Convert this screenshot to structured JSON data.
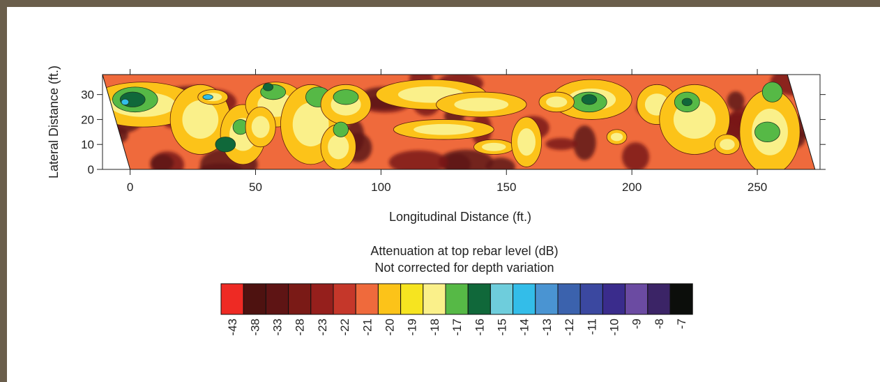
{
  "chart_data": {
    "type": "heatmap",
    "xlabel": "Longitudinal Distance (ft.)",
    "ylabel": "Lateral Distance (ft.)",
    "xlim": [
      -11,
      275
    ],
    "ylim": [
      0,
      38
    ],
    "x_ticks": [
      0,
      50,
      100,
      150,
      200,
      250
    ],
    "y_ticks": [
      0,
      10,
      20,
      30
    ],
    "deck_outline": [
      [
        -11,
        38
      ],
      [
        0,
        0
      ],
      [
        273,
        0
      ],
      [
        262,
        38
      ]
    ],
    "colorbar": {
      "title_line1": "Attenuation at top rebar level (dB)",
      "title_line2": "Not corrected for depth variation",
      "labels": [
        "-43",
        "-38",
        "-33",
        "-28",
        "-23",
        "-22",
        "-21",
        "-20",
        "-19",
        "-18",
        "-17",
        "-16",
        "-15",
        "-14",
        "-13",
        "-12",
        "-11",
        "-10",
        "-9",
        "-8",
        "-7"
      ],
      "colors": [
        "#ee2a24",
        "#4e1210",
        "#5e1414",
        "#7a1a16",
        "#951f1c",
        "#c5372a",
        "#ef6a3c",
        "#fcc319",
        "#f6e420",
        "#faf08a",
        "#56b946",
        "#10683a",
        "#6ecddc",
        "#33bde9",
        "#4a94d2",
        "#3b62ad",
        "#3b48a0",
        "#3a2c8c",
        "#6b4ba2",
        "#3b2466",
        "#0c0e0b"
      ]
    },
    "regions": [
      {
        "level": "-20",
        "cx": 5,
        "cy": 26,
        "rx": 22,
        "ry": 9
      },
      {
        "level": "-17",
        "cx": 2,
        "cy": 28,
        "rx": 9,
        "ry": 5
      },
      {
        "level": "-16",
        "cx": 1,
        "cy": 28,
        "rx": 5,
        "ry": 3
      },
      {
        "level": "-14",
        "cx": -2,
        "cy": 27,
        "rx": 1.5,
        "ry": 1.2
      },
      {
        "level": "-20",
        "cx": 28,
        "cy": 20,
        "rx": 12,
        "ry": 14
      },
      {
        "level": "-20",
        "cx": 45,
        "cy": 14,
        "rx": 9,
        "ry": 12
      },
      {
        "level": "-17",
        "cx": 44,
        "cy": 17,
        "rx": 3,
        "ry": 3
      },
      {
        "level": "-16",
        "cx": 38,
        "cy": 10,
        "rx": 4,
        "ry": 3
      },
      {
        "level": "-20",
        "cx": 58,
        "cy": 26,
        "rx": 12,
        "ry": 9
      },
      {
        "level": "-20",
        "cx": 52,
        "cy": 17,
        "rx": 6,
        "ry": 8
      },
      {
        "level": "-17",
        "cx": 57,
        "cy": 31,
        "rx": 5,
        "ry": 3
      },
      {
        "level": "-16",
        "cx": 55,
        "cy": 33,
        "rx": 2,
        "ry": 1.5
      },
      {
        "level": "-20",
        "cx": 33,
        "cy": 29,
        "rx": 6,
        "ry": 3
      },
      {
        "level": "-14",
        "cx": 31,
        "cy": 29,
        "rx": 2,
        "ry": 1
      },
      {
        "level": "-20",
        "cx": 72,
        "cy": 18,
        "rx": 12,
        "ry": 16
      },
      {
        "level": "-17",
        "cx": 75,
        "cy": 29,
        "rx": 5,
        "ry": 4
      },
      {
        "level": "-20",
        "cx": 86,
        "cy": 26,
        "rx": 10,
        "ry": 8
      },
      {
        "level": "-17",
        "cx": 86,
        "cy": 29,
        "rx": 5,
        "ry": 3
      },
      {
        "level": "-20",
        "cx": 83,
        "cy": 9,
        "rx": 7,
        "ry": 9
      },
      {
        "level": "-17",
        "cx": 84,
        "cy": 16,
        "rx": 3,
        "ry": 3
      },
      {
        "level": "-20",
        "cx": 120,
        "cy": 30,
        "rx": 22,
        "ry": 6
      },
      {
        "level": "-20",
        "cx": 140,
        "cy": 26,
        "rx": 18,
        "ry": 5
      },
      {
        "level": "-20",
        "cx": 125,
        "cy": 16,
        "rx": 20,
        "ry": 4
      },
      {
        "level": "-20",
        "cx": 145,
        "cy": 9,
        "rx": 8,
        "ry": 3
      },
      {
        "level": "-20",
        "cx": 158,
        "cy": 11,
        "rx": 6,
        "ry": 10
      },
      {
        "level": "-20",
        "cx": 184,
        "cy": 28,
        "rx": 16,
        "ry": 8
      },
      {
        "level": "-17",
        "cx": 183,
        "cy": 27,
        "rx": 7,
        "ry": 4
      },
      {
        "level": "-16",
        "cx": 183,
        "cy": 28,
        "rx": 3,
        "ry": 2
      },
      {
        "level": "-20",
        "cx": 170,
        "cy": 27,
        "rx": 7,
        "ry": 4
      },
      {
        "level": "-20",
        "cx": 210,
        "cy": 26,
        "rx": 8,
        "ry": 8
      },
      {
        "level": "-20",
        "cx": 225,
        "cy": 20,
        "rx": 14,
        "ry": 14
      },
      {
        "level": "-17",
        "cx": 222,
        "cy": 27,
        "rx": 5,
        "ry": 4
      },
      {
        "level": "-16",
        "cx": 222,
        "cy": 27,
        "rx": 2,
        "ry": 1.5
      },
      {
        "level": "-20",
        "cx": 255,
        "cy": 15,
        "rx": 12,
        "ry": 17
      },
      {
        "level": "-17",
        "cx": 254,
        "cy": 15,
        "rx": 5,
        "ry": 4
      },
      {
        "level": "-17",
        "cx": 256,
        "cy": 31,
        "rx": 4,
        "ry": 4
      },
      {
        "level": "-20",
        "cx": 238,
        "cy": 10,
        "rx": 5,
        "ry": 4
      },
      {
        "level": "-20",
        "cx": 194,
        "cy": 13,
        "rx": 4,
        "ry": 3
      }
    ]
  }
}
